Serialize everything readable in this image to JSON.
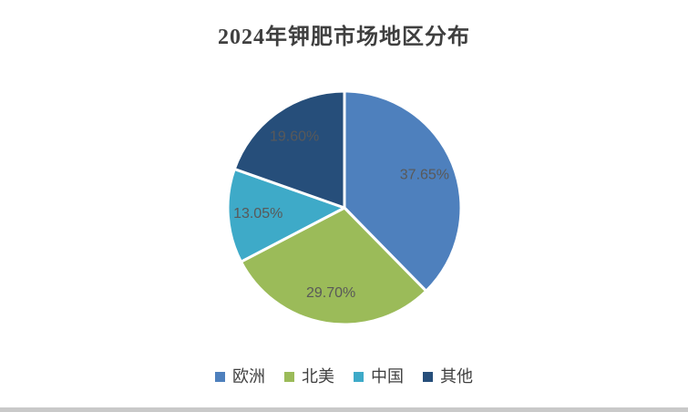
{
  "window": {
    "background_color": "#ffffff",
    "bottom_bar_color": "#c9c9c9"
  },
  "chart_data": {
    "type": "pie",
    "title": "2024年钾肥市场地区分布",
    "title_color": "#3f3f3f",
    "slice_label_color": "#595959",
    "slice_gap_color": "#ffffff",
    "start_angle_deg": 0,
    "direction": "clockwise",
    "legend_position": "bottom",
    "legend_text_color": "#404040",
    "slices": [
      {
        "label": "欧洲",
        "value": 37.65,
        "display": "37.65%",
        "color": "#4e80bd"
      },
      {
        "label": "北美",
        "value": 29.7,
        "display": "29.70%",
        "color": "#9bbb59"
      },
      {
        "label": "中国",
        "value": 13.05,
        "display": "13.05%",
        "color": "#3eaac8"
      },
      {
        "label": "其他",
        "value": 19.6,
        "display": "19.60%",
        "color": "#264e7a"
      }
    ]
  }
}
